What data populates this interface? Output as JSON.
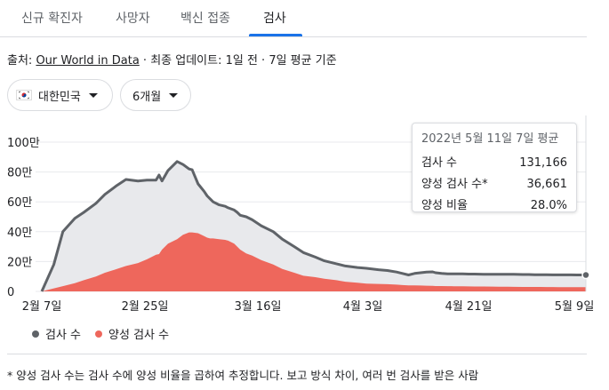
{
  "tabs": [
    {
      "label": "신규 확진자"
    },
    {
      "label": "사망자"
    },
    {
      "label": "백신 접종"
    },
    {
      "label": "검사"
    }
  ],
  "source": {
    "prefix": "출처: ",
    "link": "Our World in Data",
    "suffix": " · 최종 업데이트: 1일 전 · 7일 평균 기준"
  },
  "filters": {
    "region": "대한민국",
    "period": "6개월"
  },
  "tooltip": {
    "title": "2022년 5월 11일 7일 평균",
    "rows": [
      {
        "label": "검사 수",
        "value": "131,166"
      },
      {
        "label": "양성 검사 수*",
        "value": "36,661"
      },
      {
        "label": "양성 비율",
        "value": "28.0%"
      }
    ]
  },
  "legend": {
    "tests": "검사 수",
    "positive": "양성 검사 수"
  },
  "footnote": "* 양성 검사 수는 검사 수에 양성 비율을 곱하여 추정합니다. 보고 방식 차이, 여러 번 검사를 받은 사람",
  "colors": {
    "tests_line": "#5f6368",
    "tests_fill": "#e8e9ec",
    "positive": "#ee675c",
    "tab_accent": "#1a73e8"
  },
  "chart_data": {
    "type": "area",
    "x_tick_labels": [
      "2월 7일",
      "2월 25일",
      "3월 16일",
      "4월 3일",
      "4월 21일",
      "5월 9일"
    ],
    "y_tick_labels": [
      "0",
      "20만",
      "40만",
      "60만",
      "80만",
      "100만"
    ],
    "ylim": [
      0,
      1000000
    ],
    "x": [
      0,
      4,
      7,
      11,
      14,
      18,
      21,
      25,
      28,
      32,
      35,
      38,
      39,
      40,
      42,
      45,
      47,
      49,
      50,
      52,
      54,
      55,
      56,
      57,
      59,
      61,
      62,
      64,
      65,
      66,
      68,
      70,
      73,
      77,
      80,
      84,
      87,
      91,
      94,
      98,
      101,
      105,
      108,
      112,
      115,
      118,
      120,
      122,
      124,
      126,
      128,
      130,
      131,
      133,
      135,
      137,
      140,
      142,
      144,
      147,
      150,
      152,
      155,
      157,
      160,
      162,
      164,
      166,
      168,
      170,
      172,
      174,
      176,
      178,
      179,
      180,
      181
    ],
    "series": [
      {
        "name": "검사 수",
        "values": [
          0,
          180000,
          400000,
          490000,
          530000,
          590000,
          650000,
          710000,
          750000,
          740000,
          745000,
          745000,
          780000,
          740000,
          810000,
          870000,
          850000,
          820000,
          815000,
          720000,
          670000,
          640000,
          620000,
          600000,
          580000,
          570000,
          560000,
          545000,
          530000,
          510000,
          500000,
          480000,
          440000,
          400000,
          350000,
          300000,
          260000,
          230000,
          205000,
          185000,
          170000,
          160000,
          155000,
          145000,
          140000,
          130000,
          120000,
          110000,
          120000,
          125000,
          130000,
          131166,
          125000,
          120000,
          118000,
          117000,
          117000,
          116000,
          116000,
          115000,
          115000,
          115000,
          114000,
          114000,
          113000,
          113000,
          112000,
          112000,
          112000,
          111000,
          111000,
          111000,
          111000,
          110000,
          110000,
          110000,
          110000
        ]
      },
      {
        "name": "양성 검사 수",
        "values": [
          0,
          20000,
          35000,
          55000,
          75000,
          100000,
          125000,
          150000,
          170000,
          190000,
          215000,
          245000,
          250000,
          280000,
          320000,
          350000,
          380000,
          395000,
          395000,
          390000,
          370000,
          360000,
          355000,
          355000,
          350000,
          345000,
          340000,
          320000,
          300000,
          280000,
          255000,
          240000,
          210000,
          180000,
          150000,
          125000,
          105000,
          95000,
          85000,
          75000,
          65000,
          58000,
          52000,
          50000,
          48000,
          45000,
          42000,
          40000,
          40000,
          39000,
          38000,
          36661,
          36000,
          35500,
          35000,
          34500,
          34000,
          33500,
          33000,
          32500,
          32000,
          31500,
          31000,
          30500,
          30000,
          30000,
          29500,
          29500,
          29000,
          29000,
          28500,
          28500,
          28000,
          28000,
          28000,
          28000,
          28000
        ]
      }
    ]
  }
}
